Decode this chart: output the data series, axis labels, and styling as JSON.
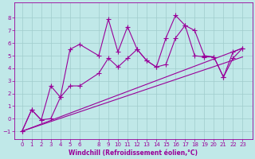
{
  "background_color": "#c0e8e8",
  "grid_color": "#a0cccc",
  "line_color": "#990099",
  "marker": "+",
  "markersize": 4,
  "markerwidth": 0.8,
  "linewidth": 0.8,
  "xlabel": "Windchill (Refroidissement éolien,°C)",
  "xlabel_fontsize": 5.5,
  "tick_fontsize": 5.0,
  "xlim": [
    -0.8,
    24.0
  ],
  "ylim": [
    -1.6,
    9.2
  ],
  "xticks": [
    0,
    1,
    2,
    3,
    4,
    5,
    6,
    8,
    9,
    10,
    11,
    12,
    13,
    14,
    15,
    16,
    17,
    18,
    19,
    20,
    21,
    22,
    23
  ],
  "yticks": [
    -1,
    0,
    1,
    2,
    3,
    4,
    5,
    6,
    7,
    8
  ],
  "series1_x": [
    0,
    1,
    2,
    3,
    4,
    5,
    6,
    8,
    9,
    10,
    11,
    12,
    13,
    14,
    15,
    16,
    17,
    18,
    19,
    20,
    21,
    22,
    23
  ],
  "series1_y": [
    -1.0,
    0.7,
    -0.1,
    2.6,
    1.7,
    5.5,
    5.9,
    5.0,
    7.9,
    5.3,
    7.3,
    5.5,
    4.6,
    4.1,
    6.4,
    8.2,
    7.4,
    7.0,
    5.0,
    4.9,
    3.3,
    5.3,
    5.6
  ],
  "series2_x": [
    0,
    1,
    2,
    3,
    4,
    5,
    6,
    8,
    9,
    10,
    11,
    12,
    13,
    14,
    15,
    16,
    17,
    18,
    19,
    20,
    21,
    22,
    23
  ],
  "series2_y": [
    -1.0,
    0.7,
    -0.1,
    0.0,
    1.7,
    2.6,
    2.6,
    3.6,
    4.8,
    4.1,
    4.8,
    5.5,
    4.6,
    4.1,
    4.3,
    6.4,
    7.4,
    5.0,
    4.9,
    4.9,
    3.3,
    4.8,
    5.6
  ],
  "series3_x": [
    0,
    23
  ],
  "series3_y": [
    -1.0,
    5.6
  ],
  "series4_x": [
    0,
    23
  ],
  "series4_y": [
    -1.0,
    4.9
  ]
}
